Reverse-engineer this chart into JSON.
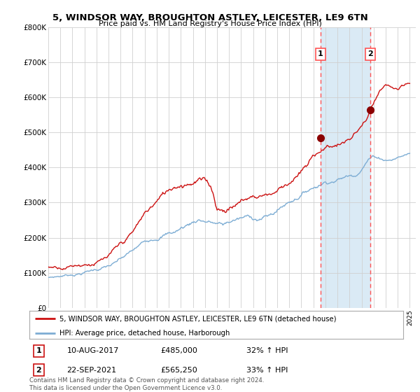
{
  "title": "5, WINDSOR WAY, BROUGHTON ASTLEY, LEICESTER, LE9 6TN",
  "subtitle": "Price paid vs. HM Land Registry's House Price Index (HPI)",
  "legend_line1": "5, WINDSOR WAY, BROUGHTON ASTLEY, LEICESTER, LE9 6TN (detached house)",
  "legend_line2": "HPI: Average price, detached house, Harborough",
  "annotation1_date": "10-AUG-2017",
  "annotation1_price": "£485,000",
  "annotation1_hpi": "32% ↑ HPI",
  "annotation2_date": "22-SEP-2021",
  "annotation2_price": "£565,250",
  "annotation2_hpi": "33% ↑ HPI",
  "footer": "Contains HM Land Registry data © Crown copyright and database right 2024.\nThis data is licensed under the Open Government Licence v3.0.",
  "hpi_color": "#7dadd4",
  "price_color": "#cc1111",
  "marker_color": "#8b0000",
  "vline_color": "#ff5555",
  "shade_color": "#daeaf5",
  "grid_color": "#d0d0d0",
  "bg_color": "#ffffff",
  "ylim": [
    0,
    800000
  ],
  "yticks": [
    0,
    100000,
    200000,
    300000,
    400000,
    500000,
    600000,
    700000,
    800000
  ],
  "ytick_labels": [
    "£0",
    "£100K",
    "£200K",
    "£300K",
    "£400K",
    "£500K",
    "£600K",
    "£700K",
    "£800K"
  ],
  "sale1_x": 2017.6,
  "sale1_y": 485000,
  "sale2_x": 2021.72,
  "sale2_y": 565250,
  "xmin": 1995,
  "xmax": 2025.5
}
